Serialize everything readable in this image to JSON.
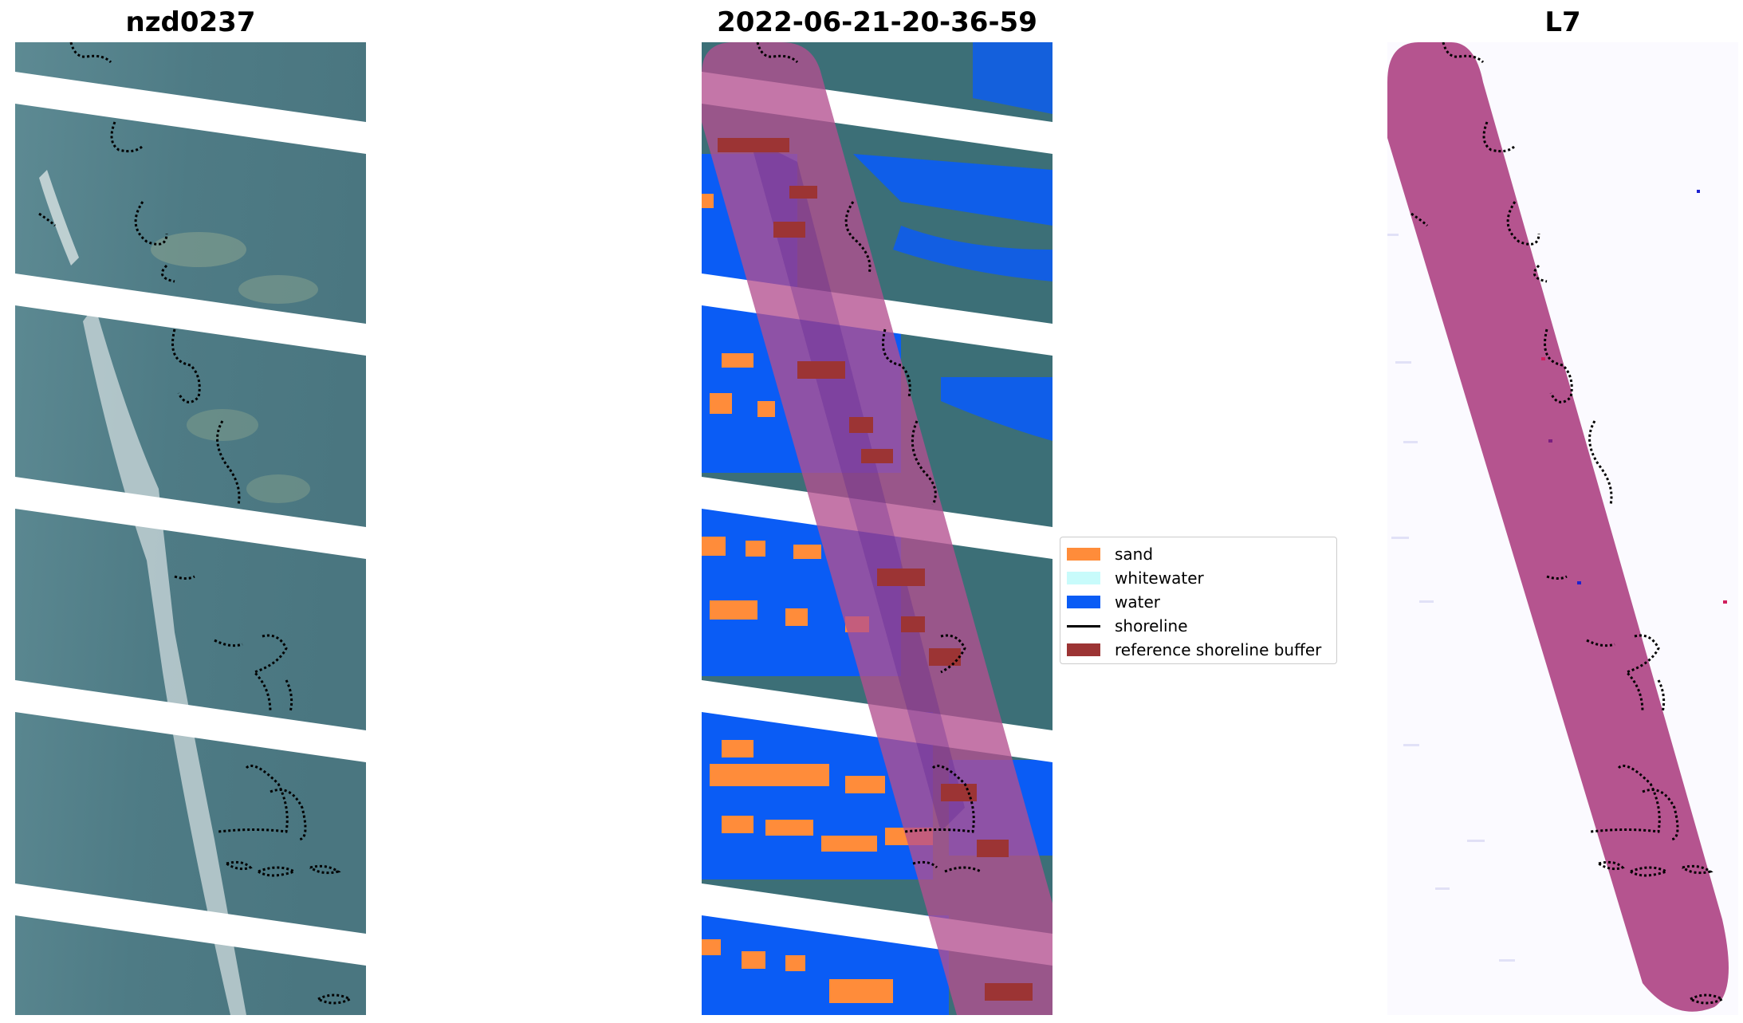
{
  "panels": [
    {
      "title": "nzd0237"
    },
    {
      "title": "2022-06-21-20-36-59"
    },
    {
      "title": "L7"
    }
  ],
  "legend": {
    "items": [
      {
        "label": "sand",
        "color": "#ff8c3a",
        "kind": "patch"
      },
      {
        "label": "whitewater",
        "color": "#c8fbfb",
        "kind": "patch"
      },
      {
        "label": "water",
        "color": "#0a5cf5",
        "kind": "patch"
      },
      {
        "label": "shoreline",
        "color": "#000000",
        "kind": "line"
      },
      {
        "label": "reference shoreline buffer",
        "color": "#9c3434",
        "kind": "patch"
      }
    ]
  },
  "colors": {
    "imagery_bg": "#4f7c86",
    "imagery_light": "#8fa99a",
    "nodata": "#ffffff",
    "buffer_overlay": "#b4508f",
    "classified_water": "#0a5cf5",
    "classified_sand": "#ff8c3a",
    "shoreline": "#000000"
  }
}
